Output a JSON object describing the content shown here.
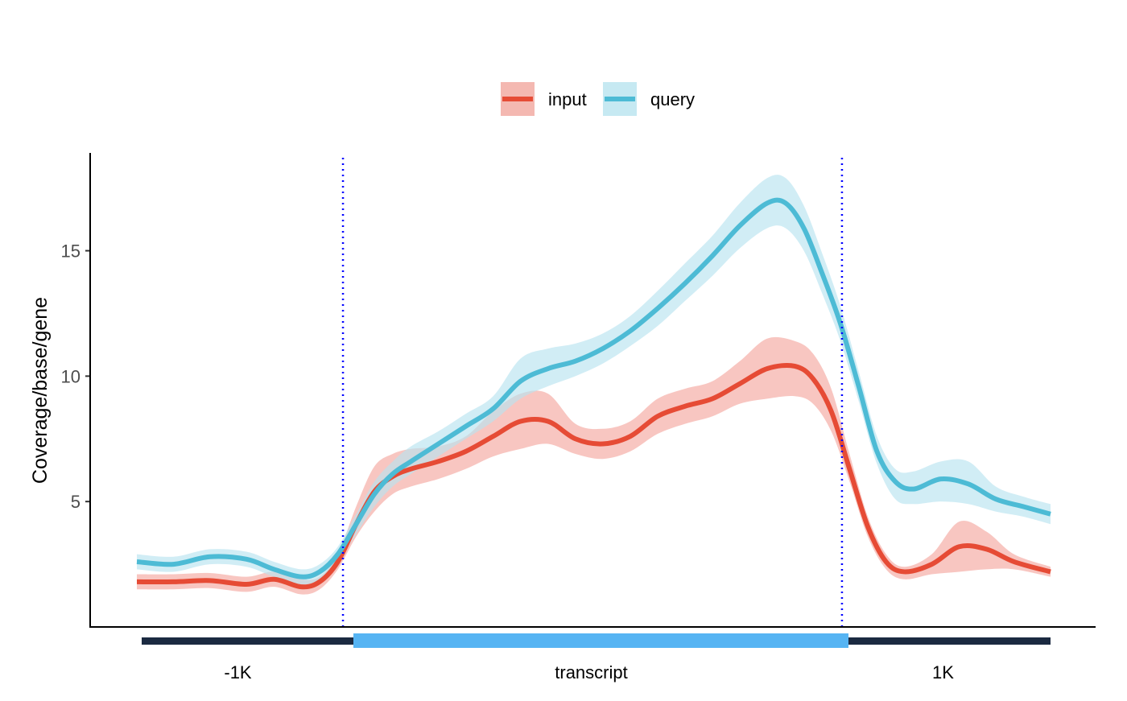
{
  "chart_data": {
    "type": "line",
    "ylabel": "Coverage/base/gene",
    "y_ticks": [
      5,
      10,
      15
    ],
    "ylim": [
      0.0,
      18.9
    ],
    "x_range": [
      0,
      100
    ],
    "region_boundaries": [
      23,
      77
    ],
    "regions": [
      {
        "label": "-1K",
        "color": "#1b2a41",
        "start": 0,
        "end": 23
      },
      {
        "label": "transcript",
        "color": "#56b4f3",
        "start": 23,
        "end": 77
      },
      {
        "label": "1K",
        "color": "#1b2a41",
        "start": 77,
        "end": 100
      }
    ],
    "legend": {
      "position": "top"
    },
    "series": [
      {
        "name": "input",
        "color": "#e64b35",
        "band_color": "#f4a8a0",
        "points": [
          [
            0,
            1.8,
            1.5,
            2.1
          ],
          [
            4,
            1.8,
            1.5,
            2.1
          ],
          [
            8,
            1.85,
            1.55,
            2.15
          ],
          [
            12,
            1.7,
            1.4,
            2.0
          ],
          [
            15,
            1.9,
            1.6,
            2.2
          ],
          [
            18,
            1.6,
            1.3,
            1.9
          ],
          [
            20,
            1.8,
            1.5,
            2.0
          ],
          [
            22,
            2.6,
            2.3,
            2.9
          ],
          [
            24,
            4.1,
            3.6,
            4.8
          ],
          [
            26,
            5.4,
            4.6,
            6.4
          ],
          [
            28,
            6.0,
            5.3,
            6.9
          ],
          [
            30,
            6.3,
            5.6,
            7.1
          ],
          [
            33,
            6.6,
            5.9,
            7.2
          ],
          [
            36,
            7.0,
            6.3,
            7.6
          ],
          [
            39,
            7.6,
            6.8,
            8.6
          ],
          [
            42,
            8.2,
            7.1,
            9.3
          ],
          [
            45,
            8.2,
            7.3,
            9.3
          ],
          [
            48,
            7.5,
            6.9,
            8.1
          ],
          [
            51,
            7.3,
            6.7,
            7.9
          ],
          [
            54,
            7.6,
            7.0,
            8.2
          ],
          [
            57,
            8.4,
            7.7,
            9.1
          ],
          [
            60,
            8.8,
            8.1,
            9.5
          ],
          [
            63,
            9.1,
            8.4,
            9.8
          ],
          [
            66,
            9.7,
            8.9,
            10.6
          ],
          [
            69,
            10.3,
            9.1,
            11.5
          ],
          [
            72,
            10.4,
            9.2,
            11.4
          ],
          [
            74,
            9.9,
            8.9,
            10.9
          ],
          [
            76,
            8.6,
            7.8,
            9.5
          ],
          [
            78,
            6.3,
            5.8,
            6.9
          ],
          [
            80,
            4.0,
            3.6,
            4.4
          ],
          [
            82,
            2.6,
            2.3,
            2.9
          ],
          [
            84,
            2.2,
            1.9,
            2.4
          ],
          [
            87,
            2.5,
            2.1,
            2.9
          ],
          [
            90,
            3.2,
            2.2,
            4.2
          ],
          [
            93,
            3.1,
            2.3,
            3.8
          ],
          [
            96,
            2.6,
            2.3,
            2.9
          ],
          [
            100,
            2.2,
            2.0,
            2.4
          ]
        ]
      },
      {
        "name": "query",
        "color": "#4dbbd5",
        "band_color": "#b9e4ef",
        "points": [
          [
            0,
            2.6,
            2.3,
            2.9
          ],
          [
            4,
            2.5,
            2.2,
            2.8
          ],
          [
            8,
            2.8,
            2.5,
            3.1
          ],
          [
            12,
            2.7,
            2.4,
            3.0
          ],
          [
            15,
            2.3,
            2.0,
            2.6
          ],
          [
            18,
            2.0,
            1.7,
            2.3
          ],
          [
            20,
            2.2,
            1.9,
            2.5
          ],
          [
            22,
            2.9,
            2.6,
            3.2
          ],
          [
            24,
            4.1,
            3.7,
            4.5
          ],
          [
            26,
            5.3,
            4.8,
            5.8
          ],
          [
            28,
            6.1,
            5.6,
            6.6
          ],
          [
            30,
            6.6,
            6.1,
            7.2
          ],
          [
            33,
            7.3,
            6.8,
            7.8
          ],
          [
            36,
            8.0,
            7.5,
            8.5
          ],
          [
            39,
            8.7,
            8.2,
            9.2
          ],
          [
            42,
            9.8,
            9.1,
            10.7
          ],
          [
            45,
            10.3,
            9.6,
            11.1
          ],
          [
            48,
            10.6,
            10.0,
            11.3
          ],
          [
            51,
            11.1,
            10.5,
            11.7
          ],
          [
            54,
            11.8,
            11.2,
            12.4
          ],
          [
            57,
            12.7,
            12.0,
            13.4
          ],
          [
            60,
            13.7,
            13.0,
            14.5
          ],
          [
            63,
            14.8,
            14.0,
            15.6
          ],
          [
            66,
            16.0,
            15.1,
            16.9
          ],
          [
            69,
            16.9,
            15.9,
            17.9
          ],
          [
            71,
            16.9,
            15.9,
            17.9
          ],
          [
            73,
            15.9,
            15.0,
            16.8
          ],
          [
            75,
            14.1,
            13.3,
            14.9
          ],
          [
            77,
            12.1,
            11.4,
            12.8
          ],
          [
            79,
            9.6,
            9.0,
            10.2
          ],
          [
            81,
            7.0,
            6.5,
            7.6
          ],
          [
            83,
            5.8,
            5.1,
            6.3
          ],
          [
            85,
            5.5,
            4.9,
            6.2
          ],
          [
            88,
            5.9,
            5.0,
            6.6
          ],
          [
            91,
            5.7,
            4.9,
            6.6
          ],
          [
            94,
            5.1,
            4.6,
            5.6
          ],
          [
            97,
            4.8,
            4.4,
            5.2
          ],
          [
            100,
            4.5,
            4.1,
            4.9
          ]
        ]
      }
    ]
  }
}
